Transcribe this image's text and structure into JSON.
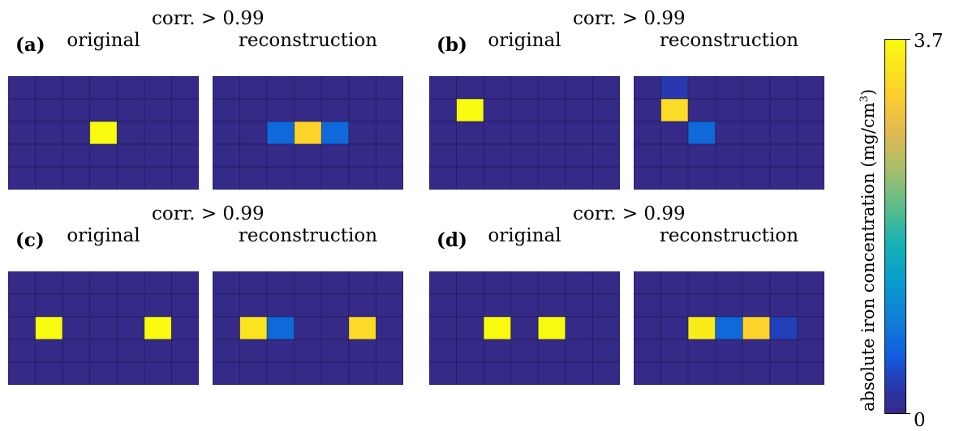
{
  "chart_data": [
    {
      "type": "heatmap",
      "panel": "(a)",
      "subtitle": "corr. > 0.99",
      "maps": [
        {
          "title": "original",
          "rows": 5,
          "cols": 7,
          "cells": [
            {
              "row": 2,
              "col": 3,
              "value": 3.7
            }
          ]
        },
        {
          "title": "reconstruction",
          "rows": 5,
          "cols": 7,
          "cells": [
            {
              "row": 2,
              "col": 2,
              "value": 0.7
            },
            {
              "row": 2,
              "col": 3,
              "value": 3.2
            },
            {
              "row": 2,
              "col": 4,
              "value": 0.7
            }
          ]
        }
      ]
    },
    {
      "type": "heatmap",
      "panel": "(b)",
      "subtitle": "corr. > 0.99",
      "maps": [
        {
          "title": "original",
          "rows": 5,
          "cols": 7,
          "cells": [
            {
              "row": 1,
              "col": 1,
              "value": 3.7
            }
          ]
        },
        {
          "title": "reconstruction",
          "rows": 5,
          "cols": 7,
          "cells": [
            {
              "row": 0,
              "col": 1,
              "value": 0.3
            },
            {
              "row": 1,
              "col": 1,
              "value": 3.3
            },
            {
              "row": 2,
              "col": 2,
              "value": 0.7
            }
          ]
        }
      ]
    },
    {
      "type": "heatmap",
      "panel": "(c)",
      "subtitle": "corr. > 0.99",
      "maps": [
        {
          "title": "original",
          "rows": 5,
          "cols": 7,
          "cells": [
            {
              "row": 2,
              "col": 1,
              "value": 3.7
            },
            {
              "row": 2,
              "col": 5,
              "value": 3.7
            }
          ]
        },
        {
          "title": "reconstruction",
          "rows": 5,
          "cols": 7,
          "cells": [
            {
              "row": 2,
              "col": 1,
              "value": 3.4
            },
            {
              "row": 2,
              "col": 2,
              "value": 0.7
            },
            {
              "row": 2,
              "col": 5,
              "value": 3.3
            }
          ]
        }
      ]
    },
    {
      "type": "heatmap",
      "panel": "(d)",
      "subtitle": "corr. > 0.99",
      "maps": [
        {
          "title": "original",
          "rows": 5,
          "cols": 7,
          "cells": [
            {
              "row": 2,
              "col": 2,
              "value": 3.7
            },
            {
              "row": 2,
              "col": 4,
              "value": 3.7
            }
          ]
        },
        {
          "title": "reconstruction",
          "rows": 5,
          "cols": 7,
          "cells": [
            {
              "row": 2,
              "col": 2,
              "value": 3.5
            },
            {
              "row": 2,
              "col": 3,
              "value": 0.7
            },
            {
              "row": 2,
              "col": 4,
              "value": 3.2
            },
            {
              "row": 2,
              "col": 5,
              "value": 0.35
            }
          ]
        }
      ]
    }
  ],
  "colorbar": {
    "label": "absolute iron concentration (mg/cm",
    "label_sup": "3",
    "label_close": ")",
    "max_label": "3.7",
    "min_label": "0",
    "vmin": 0,
    "vmax": 3.7,
    "colormap": "parula"
  }
}
